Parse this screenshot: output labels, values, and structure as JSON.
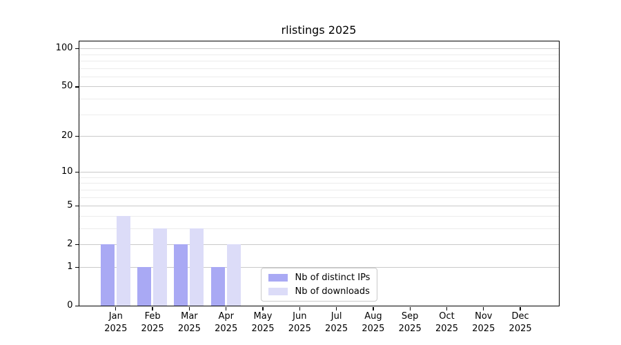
{
  "title": "rlistings 2025",
  "chart_data": {
    "type": "bar",
    "title": "rlistings 2025",
    "categories": [
      "Jan",
      "Feb",
      "Mar",
      "Apr",
      "May",
      "Jun",
      "Jul",
      "Aug",
      "Sep",
      "Oct",
      "Nov",
      "Dec"
    ],
    "x_year_label": "2025",
    "series": [
      {
        "name": "Nb of distinct IPs",
        "color": "#a9a9f4",
        "values": [
          2,
          1,
          2,
          1,
          0,
          0,
          0,
          0,
          0,
          0,
          0,
          0
        ]
      },
      {
        "name": "Nb of downloads",
        "color": "#dcdcf8",
        "values": [
          4,
          3,
          3,
          2,
          0,
          0,
          0,
          0,
          0,
          0,
          0,
          0
        ]
      }
    ],
    "y_axis": {
      "scale": "log1p",
      "major_ticks": [
        0,
        1,
        2,
        5,
        10,
        20,
        50,
        100
      ],
      "minor_gridlines": [
        3,
        4,
        6,
        7,
        8,
        9,
        30,
        40,
        60,
        70,
        80,
        90
      ],
      "ylim": [
        0,
        114
      ]
    },
    "grid": "on",
    "legend_position": "lower center"
  }
}
